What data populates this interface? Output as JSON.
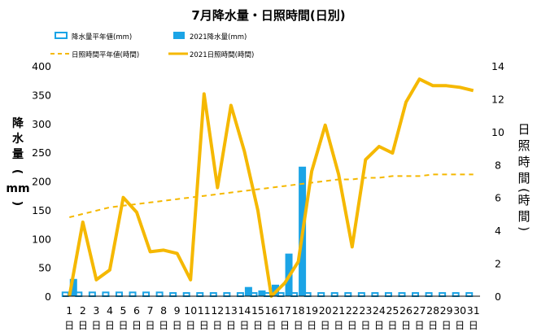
{
  "chart_data": {
    "type": "bar+line",
    "title": "7月降水量・日照時間(日別)",
    "legend": {
      "placement": "top",
      "items": [
        {
          "label": "降水量平年値(mm)",
          "kind": "bar-outline",
          "color": "#1ba4e6"
        },
        {
          "label": "2021降水量(mm)",
          "kind": "bar-fill",
          "color": "#1ba4e6"
        },
        {
          "label": "日照時間平年値(時間)",
          "kind": "line-dashed",
          "color": "#f5b800"
        },
        {
          "label": "2021日照時間(時間)",
          "kind": "line-solid",
          "color": "#f5b800"
        }
      ]
    },
    "x_tick_labels": [
      "1",
      "2",
      "3",
      "4",
      "5",
      "6",
      "7",
      "8",
      "9",
      "10",
      "11",
      "12",
      "13",
      "14",
      "15",
      "16",
      "17",
      "18",
      "19",
      "20",
      "21",
      "22",
      "23",
      "24",
      "25",
      "26",
      "27",
      "28",
      "29",
      "30",
      "31"
    ],
    "x_suffix_text": "日",
    "y_left": {
      "label": "降水量(mm)",
      "label_chars": [
        "降",
        "水",
        "量",
        "(",
        "mm",
        ")"
      ],
      "min": 0,
      "max": 400,
      "ticks": [
        0,
        50,
        100,
        150,
        200,
        250,
        300,
        350,
        400
      ]
    },
    "y_right": {
      "label": "日照時間(時間)",
      "label_chars": [
        "日",
        "照",
        "時",
        "間",
        "(",
        "時",
        "間",
        ")"
      ],
      "min": 0,
      "max": 14,
      "ticks": [
        0,
        2,
        4,
        6,
        8,
        10,
        12,
        14
      ]
    },
    "grid": false,
    "series": [
      {
        "name": "降水量平年値(mm)",
        "axis": "left",
        "type": "bar-outline",
        "values": [
          8,
          8,
          8,
          8,
          8,
          8,
          8,
          8,
          7,
          7,
          7,
          7,
          7,
          7,
          7,
          7,
          7,
          7,
          7,
          7,
          7,
          7,
          7,
          7,
          7,
          7,
          7,
          7,
          7,
          7,
          7
        ]
      },
      {
        "name": "2021降水量(mm)",
        "axis": "left",
        "type": "bar",
        "values": [
          30,
          0,
          0,
          0,
          0,
          0,
          0,
          0,
          0,
          0,
          0,
          0,
          0,
          16,
          10,
          20,
          74,
          225,
          0,
          0,
          0,
          0,
          0,
          0,
          0,
          0,
          0,
          0,
          0,
          0,
          0
        ]
      },
      {
        "name": "日照時間平年値(時間)",
        "axis": "right",
        "type": "line-dashed",
        "values": [
          4.8,
          5.0,
          5.2,
          5.4,
          5.5,
          5.6,
          5.7,
          5.8,
          5.9,
          6.0,
          6.1,
          6.2,
          6.3,
          6.4,
          6.5,
          6.6,
          6.7,
          6.8,
          6.9,
          7.0,
          7.1,
          7.1,
          7.2,
          7.2,
          7.3,
          7.3,
          7.3,
          7.4,
          7.4,
          7.4,
          7.4
        ]
      },
      {
        "name": "2021日照時間(時間)",
        "axis": "right",
        "type": "line",
        "values": [
          0,
          4.5,
          1,
          1.6,
          6,
          5.1,
          2.7,
          2.8,
          2.6,
          1,
          12.3,
          6.6,
          11.6,
          8.8,
          5.2,
          0,
          0.8,
          2.1,
          7.6,
          10.4,
          7.4,
          3,
          8.3,
          9.1,
          8.7,
          11.8,
          13.2,
          12.8,
          12.8,
          12.7,
          12.5
        ]
      }
    ]
  }
}
